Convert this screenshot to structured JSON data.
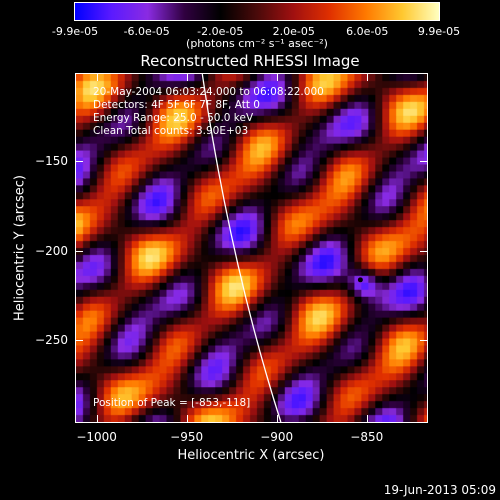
{
  "colorbar": {
    "tick_labels": [
      "-9.9e-05",
      "-6.0e-05",
      "-2.0e-05",
      "2.0e-05",
      "6.0e-05",
      "9.9e-05"
    ],
    "unit": "(photons cm⁻² s⁻¹ asec⁻²)",
    "range": [
      -9.9e-05,
      9.9e-05
    ],
    "gradient": [
      "#0000ff",
      "#5a1aff",
      "#8a2be2",
      "#300040",
      "#000000",
      "#4a0a0a",
      "#a01010",
      "#e03000",
      "#ff7a00",
      "#ffc830",
      "#ffffc0"
    ]
  },
  "title": "Reconstructed RHESSI Image",
  "info_lines": [
    "20-May-2004 06:03:24.000 to 06:08:22.000",
    "Detectors: 4F 5F 6F 7F 8F, Att 0",
    "Energy Range: 25.0 - 50.0 keV",
    "Clean     Total counts: 3.90E+03"
  ],
  "peak_position": "Position of Peak = [-853,-118]",
  "chart_data": {
    "type": "heatmap",
    "title": "Reconstructed RHESSI Image",
    "xlabel": "Heliocentric X (arcsec)",
    "ylabel": "Heliocentric Y (arcsec)",
    "xlim": [
      -1012,
      -816
    ],
    "ylim": [
      -296,
      -101
    ],
    "x_ticks": [
      -1000,
      -950,
      -900,
      -850
    ],
    "y_ticks": [
      -250,
      -200,
      -150
    ],
    "peak": [
      -853,
      -118
    ],
    "grid": false
  },
  "x_tick_labels": [
    "−1000",
    "−950",
    "−900",
    "−850"
  ],
  "y_tick_labels": [
    "−250",
    "−200",
    "−150"
  ],
  "timestamp": "19-Jun-2013 05:09"
}
